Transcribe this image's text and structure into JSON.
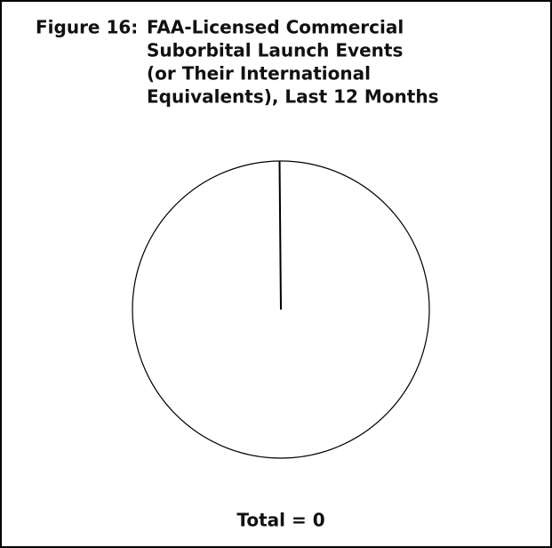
{
  "chart_data": {
    "type": "pie",
    "figure_label": "Figure 16:",
    "title": [
      "FAA-Licensed Commercial",
      "Suborbital Launch Events",
      "(or Their International",
      "Equivalents), Last 12 Months"
    ],
    "annotations": [
      "Total = 0"
    ]
  }
}
